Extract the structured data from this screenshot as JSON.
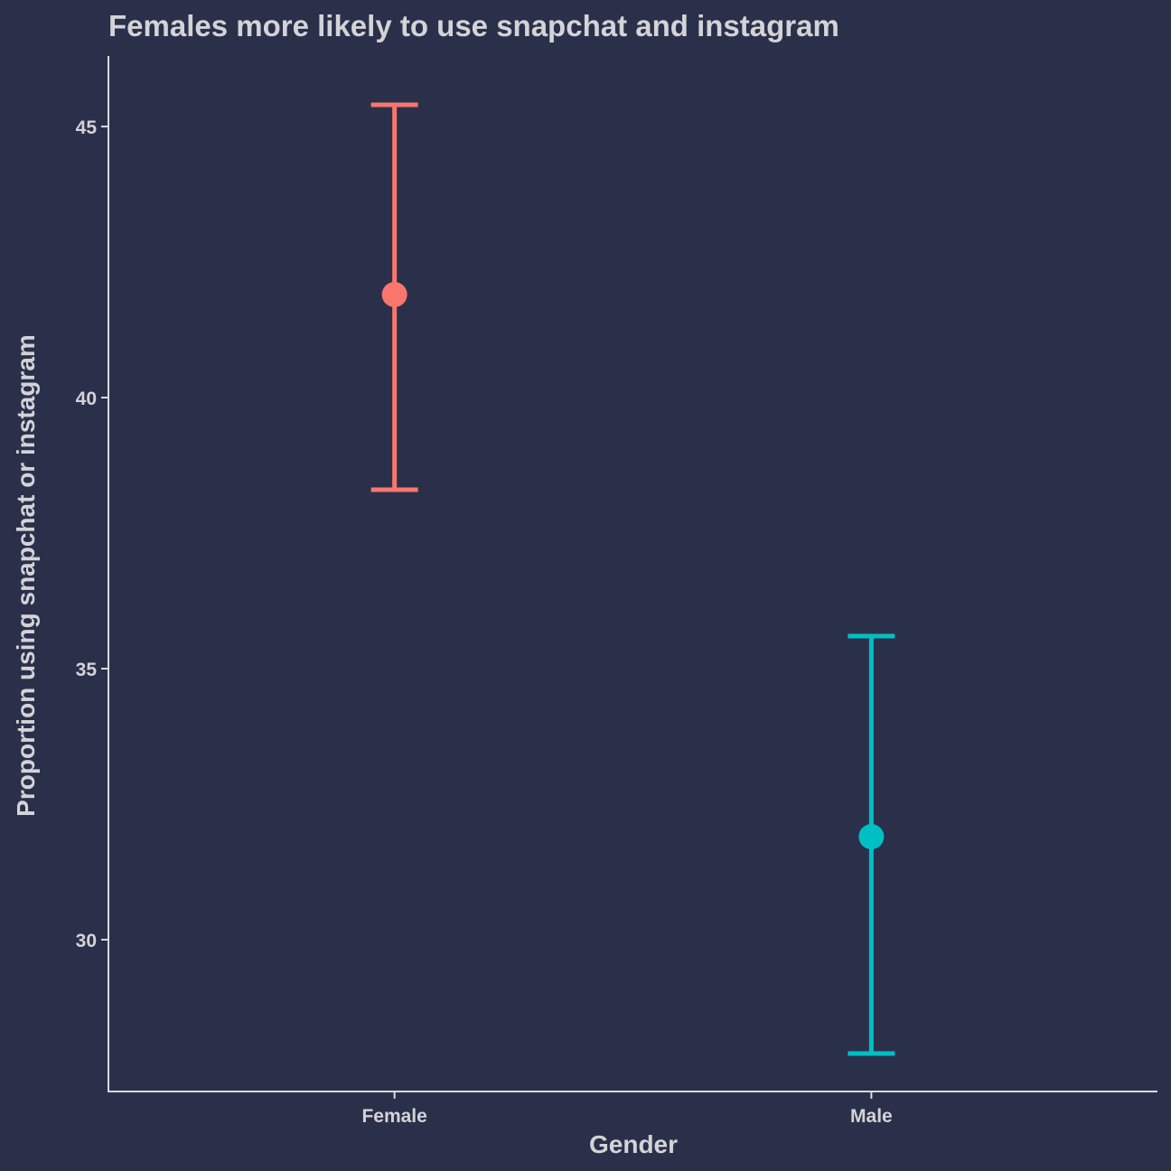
{
  "chart_data": {
    "type": "errorbar",
    "title": "Females more likely to use snapchat and instagram",
    "xlabel": "Gender",
    "ylabel": "Proportion using snapchat or instagram",
    "categories": [
      "Female",
      "Male"
    ],
    "points": [
      {
        "category": "Female",
        "value": 41.9,
        "lower": 38.3,
        "upper": 45.4,
        "color": "#f8766d"
      },
      {
        "category": "Male",
        "value": 31.9,
        "lower": 27.9,
        "upper": 35.6,
        "color": "#00bfc4"
      }
    ],
    "yticks": [
      "30",
      "35",
      "40",
      "45"
    ],
    "ylim": [
      27.2,
      46.3
    ],
    "grid": false,
    "legend": "none"
  },
  "colors": {
    "background": "#2b304a",
    "text": "#d3d3d8",
    "axis": "#d9d9df"
  }
}
